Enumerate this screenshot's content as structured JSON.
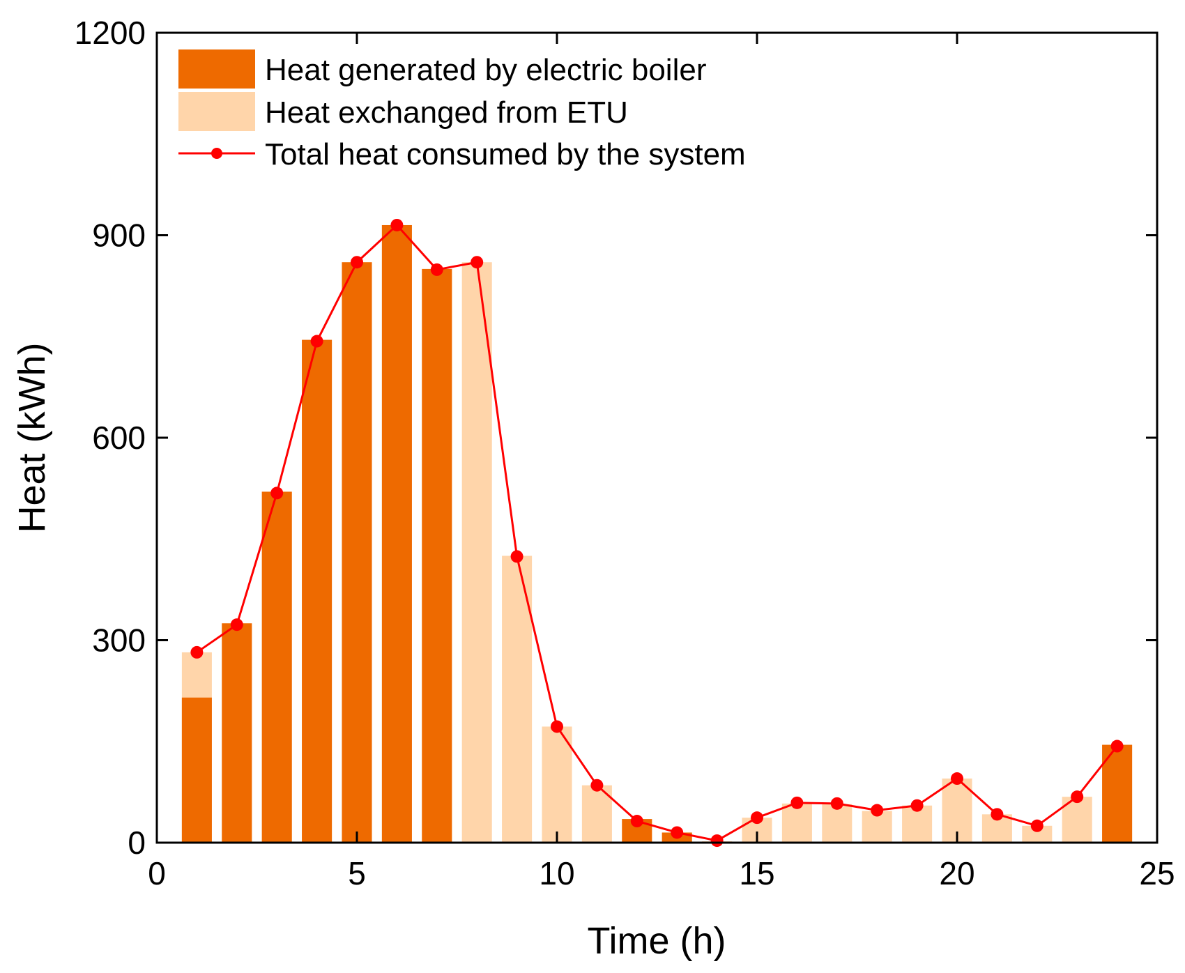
{
  "chart_data": {
    "type": "bar",
    "title": "",
    "xlabel": "Time (h)",
    "ylabel": "Heat (kWh)",
    "xlim": [
      0,
      25
    ],
    "ylim": [
      0,
      1200
    ],
    "xticks": [
      0,
      5,
      10,
      15,
      20,
      25
    ],
    "yticks": [
      0,
      300,
      600,
      900,
      1200
    ],
    "x": [
      1,
      2,
      3,
      4,
      5,
      6,
      7,
      8,
      9,
      10,
      11,
      12,
      13,
      14,
      15,
      16,
      17,
      18,
      19,
      20,
      21,
      22,
      23,
      24
    ],
    "series": [
      {
        "name": "Heat generated by electric boiler",
        "kind": "bar",
        "color": "#EE6A00",
        "values": [
          215,
          325,
          520,
          745,
          860,
          915,
          850,
          0,
          0,
          0,
          0,
          35,
          15,
          0,
          0,
          0,
          0,
          0,
          0,
          0,
          0,
          0,
          0,
          145
        ]
      },
      {
        "name": "Heat exchanged from ETU",
        "kind": "bar",
        "color": "#FFD5AA",
        "values": [
          282,
          325,
          520,
          745,
          860,
          915,
          850,
          860,
          425,
          172,
          85,
          35,
          15,
          2,
          37,
          58,
          57,
          47,
          55,
          95,
          42,
          25,
          68,
          145
        ]
      },
      {
        "name": "Total heat consumed by the system",
        "kind": "line",
        "color": "#FF0000",
        "values": [
          282,
          323,
          518,
          743,
          860,
          915,
          849,
          860,
          424,
          172,
          85,
          32,
          15,
          3,
          37,
          59,
          58,
          48,
          55,
          95,
          42,
          25,
          68,
          143
        ]
      }
    ],
    "legend_position": "top-left"
  }
}
